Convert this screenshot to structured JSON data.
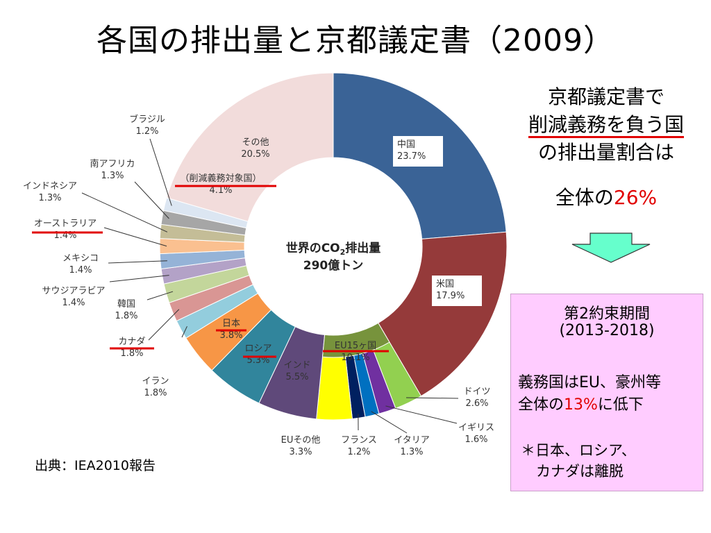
{
  "title": "各国の排出量と京都議定書（2009）",
  "chart_data": {
    "type": "pie",
    "center_line1": "世界のCO",
    "center_sub": "2",
    "center_line1_tail": "排出量",
    "center_line2": "290億トン",
    "slices": [
      {
        "name": "中国",
        "value": 23.7,
        "label": "23.7%",
        "color": "#3a6396"
      },
      {
        "name": "米国",
        "value": 17.9,
        "label": "17.9%",
        "color": "#953a3a"
      },
      {
        "name": "ドイツ",
        "value": 2.6,
        "label": "2.6%",
        "color": "#92d050"
      },
      {
        "name": "イギリス",
        "value": 1.6,
        "label": "1.6%",
        "color": "#7030a0"
      },
      {
        "name": "イタリア",
        "value": 1.3,
        "label": "1.3%",
        "color": "#0070c0"
      },
      {
        "name": "フランス",
        "value": 1.2,
        "label": "1.2%",
        "color": "#002060"
      },
      {
        "name": "EUその他",
        "value": 3.3,
        "label": "3.3%",
        "color": "#ffff00"
      },
      {
        "name": "インド",
        "value": 5.5,
        "label": "5.5%",
        "color": "#5f497a"
      },
      {
        "name": "ロシア",
        "value": 5.3,
        "label": "5.3%",
        "color": "#31859c"
      },
      {
        "name": "日本",
        "value": 3.8,
        "label": "3.8%",
        "color": "#f79646"
      },
      {
        "name": "イラン",
        "value": 1.8,
        "label": "1.8%",
        "color": "#93cddd"
      },
      {
        "name": "カナダ",
        "value": 1.8,
        "label": "1.8%",
        "color": "#d99694"
      },
      {
        "name": "韓国",
        "value": 1.8,
        "label": "1.8%",
        "color": "#c3d69b"
      },
      {
        "name": "サウジアラビア",
        "value": 1.4,
        "label": "1.4%",
        "color": "#b3a2c7"
      },
      {
        "name": "メキシコ",
        "value": 1.4,
        "label": "1.4%",
        "color": "#95b3d7"
      },
      {
        "name": "オーストラリア",
        "value": 1.4,
        "label": "1.4%",
        "color": "#fac090"
      },
      {
        "name": "インドネシア",
        "value": 1.3,
        "label": "1.3%",
        "color": "#c4bd97"
      },
      {
        "name": "南アフリカ",
        "value": 1.3,
        "label": "1.3%",
        "color": "#a6a6a6"
      },
      {
        "name": "ブラジル",
        "value": 1.2,
        "label": "1.2%",
        "color": "#dce6f2"
      },
      {
        "name": "その他",
        "value": 20.5,
        "label": "20.5%",
        "color": "#f2dcdb"
      }
    ],
    "eu_group": {
      "name": "EU15ヶ国",
      "value": 10.1,
      "label": "10.1%",
      "color": "#77933c"
    },
    "annex_note": "（削減義務対象国）",
    "annex_value": "4.1%"
  },
  "side": {
    "line1": "京都議定書で",
    "line2": "削減義務を負う国",
    "line3": "の排出量割合は",
    "total_prefix": "全体の",
    "total_value": "26%"
  },
  "period": {
    "title": "第2約束期間",
    "years": "(2013-2018)",
    "line1": "義務国はEU、豪州等",
    "line2_prefix": "全体の",
    "line2_value": "13%",
    "line2_suffix": "に低下",
    "note1": "＊日本、ロシア、",
    "note2": "カナダは離脱"
  },
  "source": "出典：IEA2010報告",
  "colors": {
    "accent_red": "#e10000",
    "arrow_fill": "#66ffcc",
    "box_fill": "#ffccff"
  }
}
